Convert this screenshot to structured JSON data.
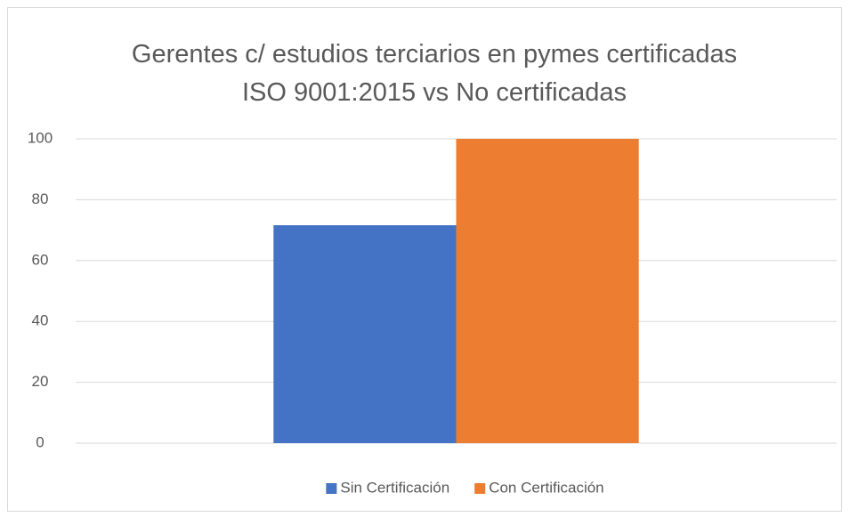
{
  "chart_data": {
    "type": "bar",
    "title": "Gerentes c/ estudios terciarios en pymes certificadas ISO 9001:2015 vs No certificadas",
    "categories": [
      null
    ],
    "series": [
      {
        "name": "Sin Certificación",
        "color": "#4472c4",
        "values": [
          71.6
        ]
      },
      {
        "name": "Con Certificación",
        "color": "#ed7d31",
        "values": [
          100
        ]
      }
    ],
    "ylim": [
      0,
      100
    ],
    "yticks": [
      0,
      20,
      40,
      60,
      80,
      100
    ],
    "grid": true,
    "legend": "bottom"
  }
}
